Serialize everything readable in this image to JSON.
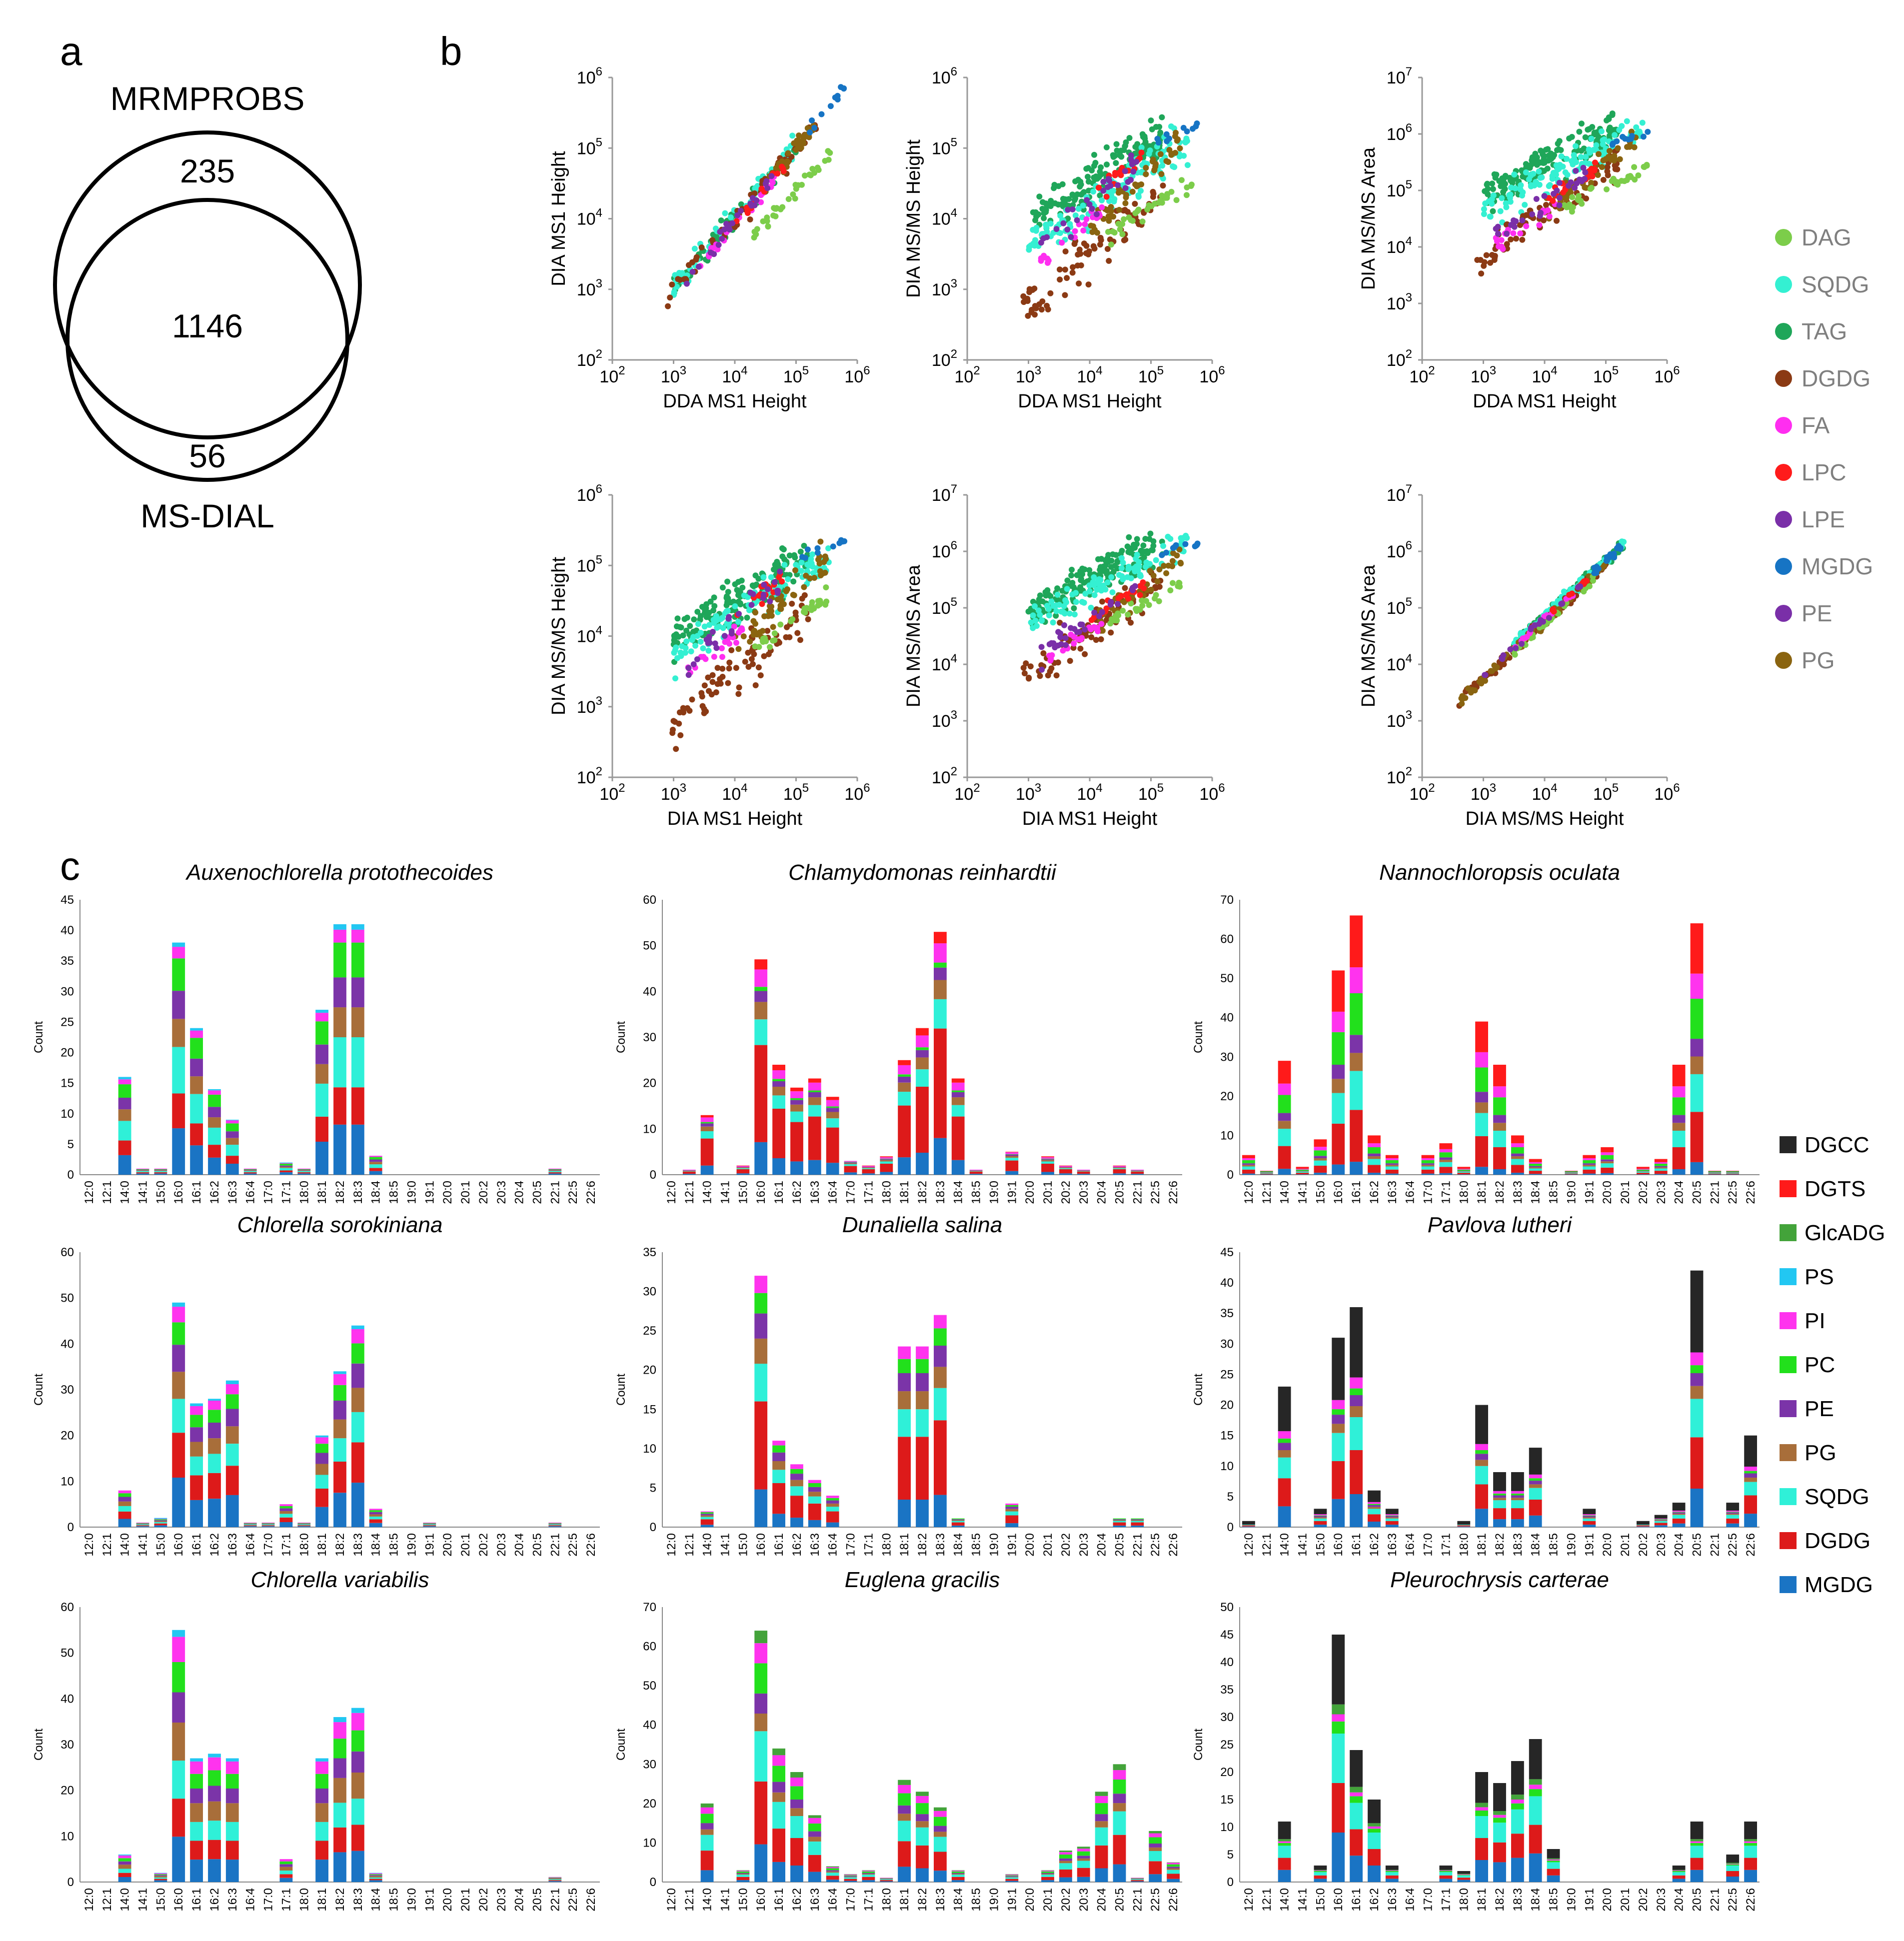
{
  "panel_labels": {
    "a": "a",
    "b": "b",
    "c": "c"
  },
  "venn": {
    "top_label": "MRMPROBS",
    "bottom_label": "MS-DIAL",
    "only_mrmprobs": "235",
    "overlap": "1146",
    "only_msdial": "56"
  },
  "colors": {
    "DAG": "#7ccd4a",
    "SQDG": "#34f0d2",
    "TAG": "#1fa659",
    "DGDG": "#8b3a14",
    "FA": "#ff2ef0",
    "LPC": "#ff1b1b",
    "LPE": "#7a2fa8",
    "MGDG": "#1674c4",
    "PE": "#7a2fa8",
    "PG": "#8a6410",
    "DGCC": "#262626",
    "DGTS": "#ff1a1a",
    "GlcADG": "#43a33a",
    "PS": "#22c7f2",
    "PI": "#ff33ee",
    "PC": "#22e01c",
    "PE_c": "#7b34a8",
    "PG_c": "#a86e3a",
    "SQDG_c": "#2ff0d8",
    "DGDG_c": "#dd1a1a",
    "MGDG_c": "#1a74c4"
  },
  "scatter_legend": [
    "DAG",
    "SQDG",
    "TAG",
    "DGDG",
    "FA",
    "LPC",
    "LPE",
    "MGDG",
    "PE",
    "PG"
  ],
  "bar_legend": [
    "DGCC",
    "DGTS",
    "GlcADG",
    "PS",
    "PI",
    "PC",
    "PE",
    "PG",
    "SQDG",
    "DGDG",
    "MGDG"
  ],
  "chart_data": [
    {
      "type": "scatter",
      "scale": "log",
      "panels": [
        {
          "xlabel": "DDA MS1 Height",
          "ylabel": "DIA MS1 Height",
          "xlim": [
            100,
            1000000
          ],
          "ylim": [
            100,
            1000000
          ],
          "relation": "MS1 vs MS1"
        },
        {
          "xlabel": "DDA MS1 Height",
          "ylabel": "DIA MS/MS Height",
          "xlim": [
            100,
            1000000
          ],
          "ylim": [
            100,
            1000000
          ],
          "relation": "MS1 vs MS/MS height"
        },
        {
          "xlabel": "DDA MS1 Height",
          "ylabel": "DIA MS/MS Area",
          "xlim": [
            100,
            1000000
          ],
          "ylim": [
            100,
            10000000
          ],
          "relation": "MS1 vs MS/MS area"
        },
        {
          "xlabel": "DIA MS1 Height",
          "ylabel": "DIA MS/MS Height",
          "xlim": [
            100,
            1000000
          ],
          "ylim": [
            100,
            1000000
          ],
          "relation": "MS1 vs MS/MS height"
        },
        {
          "xlabel": "DIA MS1 Height",
          "ylabel": "DIA MS/MS Area",
          "xlim": [
            100,
            1000000
          ],
          "ylim": [
            100,
            10000000
          ],
          "relation": "MS1 vs MS/MS area"
        },
        {
          "xlabel": "DIA MS/MS Height",
          "ylabel": "DIA MS/MS Area",
          "xlim": [
            100,
            1000000
          ],
          "ylim": [
            100,
            10000000
          ],
          "relation": "MS/MS height vs area"
        }
      ]
    },
    {
      "type": "bar",
      "stacked": true,
      "categories": [
        "12:0",
        "12:1",
        "14:0",
        "14:1",
        "15:0",
        "16:0",
        "16:1",
        "16:2",
        "16:3",
        "16:4",
        "17:0",
        "17:1",
        "18:0",
        "18:1",
        "18:2",
        "18:3",
        "18:4",
        "18:5",
        "19:0",
        "19:1",
        "20:0",
        "20:1",
        "20:2",
        "20:3",
        "20:4",
        "20:5",
        "22:1",
        "22:5",
        "22:6"
      ],
      "ylabel": "Count",
      "panels": [
        {
          "title": "Auxenochlorella protothecoides",
          "ymax": 45,
          "ystep": 5,
          "bars": {
            "14:0": 16,
            "14:1": 1,
            "15:0": 1,
            "16:0": 38,
            "16:1": 24,
            "16:2": 14,
            "16:3": 9,
            "16:4": 1,
            "17:1": 2,
            "18:0": 1,
            "18:1": 27,
            "18:2": 41,
            "18:3": 41,
            "18:4": 3,
            "22:1": 1
          }
        },
        {
          "title": "Chlamydomonas reinhardtii",
          "ymax": 60,
          "ystep": 10,
          "bars": {
            "12:1": 1,
            "14:0": 13,
            "15:0": 2,
            "16:0": 47,
            "16:1": 24,
            "16:2": 19,
            "16:3": 21,
            "16:4": 17,
            "17:0": 3,
            "17:1": 2,
            "18:0": 4,
            "18:1": 25,
            "18:2": 32,
            "18:3": 53,
            "18:4": 21,
            "18:5": 1,
            "19:1": 5,
            "20:1": 4,
            "20:2": 2,
            "20:3": 1,
            "20:5": 2,
            "22:1": 1
          }
        },
        {
          "title": "Nannochloropsis oculata",
          "ymax": 70,
          "ystep": 10,
          "bars": {
            "12:0": 5,
            "12:1": 1,
            "14:0": 29,
            "14:1": 2,
            "15:0": 9,
            "16:0": 52,
            "16:1": 66,
            "16:2": 10,
            "16:3": 5,
            "17:0": 5,
            "17:1": 8,
            "18:0": 2,
            "18:1": 39,
            "18:2": 28,
            "18:3": 10,
            "18:4": 4,
            "19:0": 1,
            "19:1": 5,
            "20:0": 7,
            "20:2": 2,
            "20:3": 4,
            "20:4": 28,
            "20:5": 64,
            "22:1": 1,
            "22:5": 1
          }
        },
        {
          "title": "Chlorella sorokiniana",
          "ymax": 60,
          "ystep": 10,
          "bars": {
            "14:0": 8,
            "14:1": 1,
            "15:0": 2,
            "16:0": 49,
            "16:1": 27,
            "16:2": 28,
            "16:3": 32,
            "16:4": 1,
            "17:0": 1,
            "17:1": 5,
            "18:0": 1,
            "18:1": 20,
            "18:2": 34,
            "18:3": 44,
            "18:4": 4,
            "19:1": 1,
            "22:1": 1
          }
        },
        {
          "title": "Dunaliella salina",
          "ymax": 35,
          "ystep": 5,
          "bars": {
            "14:0": 2,
            "16:0": 32,
            "16:1": 11,
            "16:2": 8,
            "16:3": 6,
            "16:4": 4,
            "18:1": 23,
            "18:2": 23,
            "18:3": 27,
            "18:4": 1,
            "19:1": 3,
            "20:5": 1,
            "22:1": 1
          }
        },
        {
          "title": "Pavlova lutheri",
          "ymax": 45,
          "ystep": 5,
          "bars": {
            "12:0": 1,
            "14:0": 23,
            "15:0": 3,
            "16:0": 31,
            "16:1": 36,
            "16:2": 6,
            "16:3": 3,
            "18:0": 1,
            "18:1": 20,
            "18:2": 9,
            "18:3": 9,
            "18:4": 13,
            "19:1": 3,
            "20:2": 1,
            "20:3": 2,
            "20:4": 4,
            "20:5": 42,
            "22:5": 4,
            "22:6": 15
          }
        },
        {
          "title": "Chlorella variabilis",
          "ymax": 60,
          "ystep": 10,
          "bars": {
            "14:0": 6,
            "15:0": 2,
            "16:0": 55,
            "16:1": 27,
            "16:2": 28,
            "16:3": 27,
            "17:1": 5,
            "18:1": 27,
            "18:2": 36,
            "18:3": 38,
            "18:4": 2,
            "22:1": 1
          }
        },
        {
          "title": "Euglena gracilis",
          "ymax": 70,
          "ystep": 10,
          "bars": {
            "14:0": 20,
            "15:0": 3,
            "16:0": 64,
            "16:1": 34,
            "16:2": 28,
            "16:3": 17,
            "16:4": 4,
            "17:0": 2,
            "17:1": 3,
            "18:0": 1,
            "18:1": 26,
            "18:2": 23,
            "18:3": 19,
            "18:4": 3,
            "19:1": 2,
            "20:1": 3,
            "20:2": 8,
            "20:3": 9,
            "20:4": 23,
            "20:5": 30,
            "22:1": 1,
            "22:5": 13,
            "22:6": 5
          }
        },
        {
          "title": "Pleurochrysis carterae",
          "ymax": 50,
          "ystep": 5,
          "bars": {
            "14:0": 11,
            "15:0": 3,
            "16:0": 45,
            "16:1": 24,
            "16:2": 15,
            "16:3": 3,
            "17:1": 3,
            "18:0": 2,
            "18:1": 20,
            "18:2": 18,
            "18:3": 22,
            "18:4": 26,
            "18:5": 6,
            "20:4": 3,
            "20:5": 11,
            "22:5": 5,
            "22:6": 11
          }
        }
      ]
    }
  ]
}
